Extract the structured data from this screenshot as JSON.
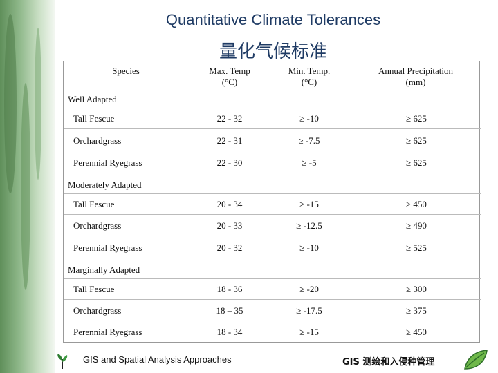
{
  "title_en": "Quantitative Climate Tolerances",
  "title_zh": "量化气候标准",
  "columns": [
    "Species",
    "Max. Temp\n(°C)",
    "Min. Temp.\n(°C)",
    "Annual Precipitation\n(mm)"
  ],
  "groups": [
    {
      "label": "Well Adapted",
      "rows": [
        [
          "Tall Fescue",
          "22 - 32",
          "≥ -10",
          "≥ 625"
        ],
        [
          "Orchardgrass",
          "22 - 31",
          "≥ -7.5",
          "≥ 625"
        ],
        [
          "Perennial Ryegrass",
          "22 - 30",
          "≥ -5",
          "≥ 625"
        ]
      ]
    },
    {
      "label": "Moderately Adapted",
      "rows": [
        [
          "Tall Fescue",
          "20 - 34",
          "≥ -15",
          "≥ 450"
        ],
        [
          "Orchardgrass",
          "20 - 33",
          "≥ -12.5",
          "≥ 490"
        ],
        [
          "Perennial Ryegrass",
          "20 - 32",
          "≥ -10",
          "≥ 525"
        ]
      ]
    },
    {
      "label": "Marginally Adapted",
      "rows": [
        [
          "Tall Fescue",
          "18 - 36",
          "≥ -20",
          "≥ 300"
        ],
        [
          "Orchardgrass",
          "18 – 35",
          "≥ -17.5",
          "≥ 375"
        ],
        [
          "Perennial Ryegrass",
          "18 - 34",
          "≥ -15",
          "≥ 450"
        ]
      ]
    }
  ],
  "footer_left": "GIS and Spatial Analysis Approaches",
  "footer_right": "GIS 测绘和入侵种管理",
  "colors": {
    "title": "#1f3b64",
    "leaf": "#6f9e63"
  },
  "icons": [
    "plant-logo-icon",
    "leaf-logo-icon"
  ]
}
